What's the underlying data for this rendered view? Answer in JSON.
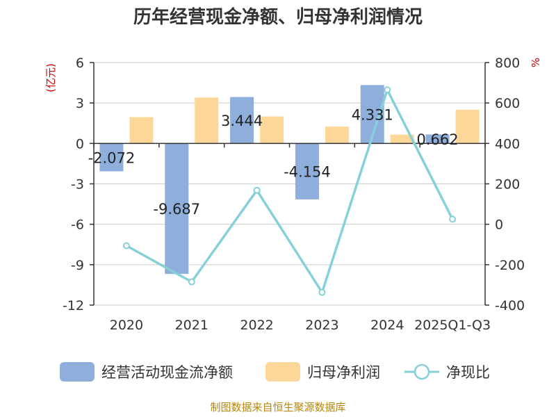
{
  "chart_data": {
    "type": "bar",
    "title": "历年经营现金净额、归母净利润情况",
    "categories": [
      "2020",
      "2021",
      "2022",
      "2023",
      "2024",
      "2025Q1-Q3"
    ],
    "left_unit": "(亿元)",
    "right_unit": "%",
    "y_left": {
      "min": -12,
      "max": 6,
      "ticks": [
        6,
        3,
        0,
        -3,
        -6,
        -9,
        -12
      ]
    },
    "y_right": {
      "min": -400,
      "max": 800,
      "ticks": [
        800,
        600,
        400,
        200,
        0,
        -200,
        -400
      ]
    },
    "grid": true,
    "legend_position": "bottom",
    "series": [
      {
        "name": "经营活动现金流净额",
        "type": "bar",
        "axis": "left",
        "color": "#8eaedc",
        "values": [
          -2.072,
          -9.687,
          3.444,
          -4.154,
          4.331,
          0.662
        ],
        "labels": [
          "-2.072",
          "-9.687",
          "3.444",
          "-4.154",
          "4.331",
          "0.662"
        ]
      },
      {
        "name": "归母净利润",
        "type": "bar",
        "axis": "left",
        "color": "#fdd79a",
        "values": [
          1.95,
          3.4,
          2.0,
          1.25,
          0.65,
          2.5
        ]
      },
      {
        "name": "净现比",
        "type": "line",
        "axis": "right",
        "color": "#86d0d8",
        "values": [
          -106,
          -285,
          168,
          -337,
          665,
          25
        ]
      }
    ],
    "source": "制图数据来自恒生聚源数据库"
  }
}
